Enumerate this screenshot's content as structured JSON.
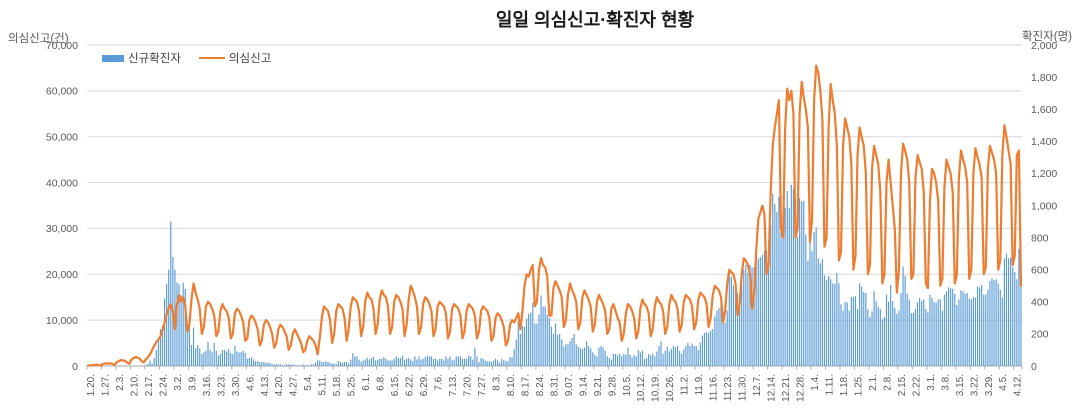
{
  "title": "일일 의심신고·확진자 현황",
  "left_axis": {
    "title": "의심신고(건)",
    "ticks": [
      "70,000",
      "60,000",
      "50,000",
      "40,000",
      "30,000",
      "20,000",
      "10,000",
      "0"
    ],
    "max": 70000
  },
  "right_axis": {
    "title": "확진자(명)",
    "ticks": [
      "2,000",
      "1,800",
      "1,600",
      "1,400",
      "1,200",
      "1,000",
      "800",
      "600",
      "400",
      "200",
      "0"
    ],
    "max": 2000
  },
  "legend": [
    {
      "label": "신규확진자",
      "color": "#5B9BD5",
      "type": "bar"
    },
    {
      "label": "의심신고",
      "color": "#ED7D31",
      "type": "line"
    }
  ],
  "colors": {
    "bar": "#5B9BD5",
    "line": "#ED7D31",
    "gridline": "#D9D9D9",
    "axis_line": "#ADADAD",
    "tick_text": "#595959"
  },
  "chart_data": {
    "type": "combo",
    "title": "일일 의심신고·확진자 현황",
    "x_tick_labels": [
      "1.20.",
      "1.27.",
      "2.3.",
      "2.10.",
      "2.17.",
      "2.24.",
      "3.2.",
      "3.9.",
      "3.16.",
      "3.23.",
      "3.30.",
      "4.6.",
      "4.13.",
      "4.20.",
      "4.27.",
      "5.4.",
      "5.11.",
      "5.18.",
      "5.25.",
      "6.1.",
      "6.8.",
      "6.15.",
      "6.22.",
      "6.29.",
      "7.6.",
      "7.13.",
      "7.20.",
      "7.27.",
      "8.3.",
      "8.10.",
      "8.17.",
      "8.24.",
      "8.31.",
      "9.07.",
      "9.14.",
      "9.21.",
      "9.28.",
      "10.5.",
      "10.12.",
      "10.19.",
      "10.26.",
      "11.2.",
      "11.9.",
      "11.16.",
      "11.23.",
      "11.30.",
      "12.7.",
      "12.14.",
      "12.21.",
      "12.28.",
      "1.4.",
      "1.11.",
      "1.18.",
      "1.25.",
      "2.1.",
      "2.8.",
      "2.15.",
      "2.22.",
      "3.1.",
      "3.8.",
      "3.15.",
      "3.22.",
      "3.29.",
      "4.5.",
      "4.12."
    ],
    "days_per_tick": 7,
    "left_axis_range": [
      0,
      70000
    ],
    "right_axis_range": [
      0,
      2000
    ],
    "gridlines": true,
    "legend_position": "top-left-inside",
    "series": [
      {
        "name": "신규확진자",
        "type": "bar",
        "axis": "right",
        "color": "#5B9BD5",
        "values": [
          1,
          0,
          0,
          1,
          0,
          0,
          1,
          1,
          1,
          0,
          1,
          2,
          0,
          1,
          2,
          1,
          3,
          1,
          4,
          1,
          2,
          1,
          0,
          2,
          1,
          1,
          2,
          3,
          5,
          15,
          35,
          15,
          50,
          100,
          170,
          230,
          250,
          420,
          510,
          600,
          900,
          680,
          600,
          520,
          510,
          440,
          520,
          480,
          270,
          250,
          130,
          240,
          110,
          130,
          110,
          75,
          85,
          95,
          150,
          100,
          85,
          145,
          95,
          65,
          75,
          100,
          100,
          90,
          105,
          80,
          75,
          125,
          90,
          85,
          85,
          95,
          80,
          45,
          50,
          55,
          40,
          30,
          30,
          25,
          25,
          25,
          20,
          20,
          20,
          10,
          10,
          10,
          10,
          10,
          5,
          5,
          10,
          10,
          10,
          10,
          5,
          5,
          5,
          5,
          10,
          5,
          5,
          5,
          10,
          10,
          20,
          35,
          35,
          25,
          25,
          30,
          25,
          20,
          15,
          15,
          10,
          30,
          25,
          20,
          25,
          25,
          15,
          40,
          80,
          60,
          60,
          40,
          25,
          35,
          40,
          50,
          40,
          50,
          55,
          35,
          40,
          45,
          45,
          55,
          45,
          35,
          35,
          35,
          45,
          60,
          50,
          50,
          65,
          40,
          45,
          50,
          40,
          30,
          60,
          40,
          60,
          40,
          45,
          55,
          65,
          60,
          60,
          45,
          45,
          35,
          45,
          45,
          35,
          60,
          45,
          60,
          35,
          40,
          60,
          60,
          60,
          45,
          45,
          45,
          65,
          60,
          40,
          115,
          60,
          25,
          50,
          45,
          35,
          30,
          30,
          25,
          35,
          45,
          35,
          20,
          45,
          35,
          30,
          30,
          55,
          55,
          105,
          165,
          280,
          200,
          250,
          245,
          295,
          325,
          330,
          395,
          265,
          265,
          320,
          440,
          370,
          370,
          320,
          300,
          245,
          200,
          265,
          195,
          200,
          165,
          120,
          135,
          135,
          155,
          175,
          200,
          135,
          120,
          110,
          105,
          115,
          155,
          125,
          110,
          85,
          70,
          60,
          115,
          125,
          115,
          95,
          60,
          50,
          40,
          75,
          75,
          65,
          75,
          60,
          75,
          70,
          115,
          70,
          55,
          70,
          60,
          100,
          85,
          95,
          45,
          50,
          75,
          65,
          75,
          60,
          90,
          125,
          155,
          75,
          95,
          120,
          90,
          105,
          125,
          115,
          125,
          95,
          75,
          105,
          125,
          145,
          125,
          140,
          125,
          125,
          100,
          145,
          190,
          205,
          210,
          205,
          220,
          230,
          310,
          345,
          360,
          385,
          330,
          270,
          345,
          580,
          555,
          500,
          485,
          450,
          435,
          510,
          600,
          630,
          580,
          630,
          615,
          615,
          685,
          670,
          680,
          690,
          720,
          715,
          715,
          880,
          1075,
          1010,
          960,
          1055,
          925,
          925,
          985,
          1090,
          985,
          1130,
          1105,
          965,
          805,
          1045,
          1025,
          1030,
          820,
          655,
          815,
          715,
          835,
          865,
          670,
          640,
          665,
          565,
          535,
          560,
          540,
          515,
          510,
          580,
          515,
          385,
          345,
          400,
          395,
          345,
          430,
          430,
          435,
          355,
          515,
          495,
          460,
          455,
          355,
          305,
          340,
          465,
          405,
          370,
          355,
          290,
          305,
          445,
          400,
          505,
          405,
          360,
          325,
          345,
          455,
          620,
          560,
          450,
          415,
          330,
          330,
          355,
          395,
          425,
          405,
          415,
          355,
          335,
          445,
          425,
          400,
          395,
          415,
          415,
          345,
          445,
          465,
          490,
          485,
          480,
          450,
          380,
          415,
          470,
          465,
          450,
          455,
          420,
          415,
          430,
          425,
          495,
          490,
          505,
          445,
          445,
          475,
          530,
          545,
          535,
          540,
          515,
          475,
          425,
          670,
          700,
          670,
          675,
          615,
          585,
          540,
          730,
          695
        ]
      },
      {
        "name": "의심신고",
        "type": "line",
        "axis": "left",
        "color": "#ED7D31",
        "values": [
          100,
          100,
          200,
          200,
          300,
          200,
          100,
          400,
          500,
          600,
          500,
          600,
          400,
          300,
          900,
          1100,
          1300,
          1200,
          1100,
          700,
          500,
          1400,
          1700,
          2000,
          1800,
          1600,
          1000,
          800,
          1500,
          1900,
          2600,
          3500,
          4400,
          5200,
          5800,
          6500,
          7800,
          9500,
          11200,
          12600,
          13500,
          12000,
          8000,
          13500,
          15500,
          14000,
          15000,
          13000,
          7500,
          9000,
          14500,
          18000,
          16000,
          14500,
          12500,
          7000,
          8500,
          13000,
          14000,
          13500,
          12500,
          11000,
          6500,
          7500,
          12000,
          13500,
          12500,
          12000,
          10500,
          6000,
          7000,
          11500,
          12500,
          12000,
          11000,
          9500,
          5500,
          6000,
          10000,
          11000,
          10500,
          9500,
          8000,
          4500,
          5500,
          9000,
          10000,
          9500,
          8500,
          7000,
          4000,
          5000,
          8000,
          9000,
          8500,
          7500,
          6500,
          3500,
          4500,
          7000,
          8000,
          7000,
          6000,
          5000,
          3000,
          3500,
          5500,
          6500,
          6000,
          5500,
          4500,
          2500,
          6000,
          10500,
          13000,
          12500,
          12000,
          10000,
          5000,
          7000,
          12000,
          13500,
          13000,
          12500,
          10500,
          5500,
          8000,
          13000,
          15000,
          14500,
          14000,
          12000,
          6500,
          8500,
          14000,
          16000,
          15000,
          14500,
          12500,
          7000,
          9000,
          14500,
          16500,
          15500,
          15000,
          13000,
          7000,
          8500,
          14000,
          15500,
          15000,
          14000,
          12500,
          6500,
          9000,
          14500,
          17500,
          16500,
          15000,
          13000,
          7000,
          8500,
          13500,
          15000,
          14500,
          13500,
          12000,
          6500,
          8000,
          13000,
          14000,
          13500,
          13000,
          11500,
          6000,
          7500,
          12500,
          13500,
          13000,
          12500,
          11000,
          6000,
          7500,
          12000,
          13500,
          13000,
          12500,
          11000,
          6000,
          7500,
          12000,
          13000,
          12500,
          12000,
          10500,
          5500,
          6500,
          10500,
          11500,
          11000,
          10000,
          8500,
          4500,
          5500,
          9000,
          10000,
          9500,
          10500,
          11500,
          8000,
          12000,
          17500,
          20000,
          19500,
          21000,
          22000,
          13000,
          14000,
          21000,
          23500,
          22000,
          21500,
          19500,
          11000,
          11000,
          17000,
          18500,
          17500,
          16500,
          15000,
          8500,
          10000,
          15500,
          18000,
          16500,
          15500,
          14000,
          8000,
          9500,
          15000,
          16500,
          15500,
          14500,
          13000,
          7500,
          9000,
          14000,
          15500,
          14500,
          13500,
          12000,
          7000,
          8000,
          12500,
          13500,
          12000,
          10500,
          9500,
          5500,
          7000,
          11500,
          13500,
          13000,
          12000,
          10500,
          6000,
          7500,
          12500,
          14500,
          13500,
          13000,
          11500,
          6500,
          8000,
          13000,
          15000,
          14000,
          13500,
          12000,
          7000,
          8500,
          13500,
          15500,
          14500,
          14000,
          12500,
          7500,
          9000,
          14000,
          15500,
          15000,
          14500,
          13000,
          8000,
          9500,
          14500,
          16000,
          15500,
          15000,
          13500,
          8500,
          10500,
          15500,
          17500,
          17000,
          16500,
          15000,
          9500,
          12000,
          18000,
          21000,
          20500,
          20000,
          18000,
          11000,
          13500,
          20000,
          23500,
          23000,
          22000,
          20000,
          12500,
          16000,
          25000,
          32000,
          33500,
          35000,
          33000,
          20000,
          22000,
          38000,
          48000,
          52000,
          55000,
          58000,
          30000,
          28000,
          52000,
          60500,
          58000,
          60000,
          55000,
          28000,
          30000,
          55000,
          62000,
          58500,
          56000,
          52000,
          27000,
          32000,
          58000,
          65500,
          64000,
          60000,
          54000,
          26000,
          28000,
          52000,
          61500,
          58000,
          55000,
          48000,
          23000,
          25000,
          48000,
          54000,
          52000,
          50000,
          44000,
          21000,
          24000,
          46000,
          52000,
          50000,
          48000,
          42000,
          20000,
          22000,
          43000,
          48000,
          46000,
          44000,
          38000,
          18000,
          20000,
          40000,
          45000,
          40000,
          35000,
          30000,
          16000,
          21000,
          42000,
          48500,
          47000,
          45000,
          40000,
          19000,
          20000,
          41000,
          46000,
          44500,
          43000,
          38000,
          18000,
          17000,
          36000,
          43000,
          42000,
          40000,
          36000,
          17500,
          19000,
          39000,
          45000,
          43500,
          42000,
          38000,
          18000,
          20000,
          41000,
          47000,
          45000,
          43500,
          40000,
          19000,
          21000,
          42000,
          47500,
          45500,
          44000,
          41000,
          20000,
          21500,
          43000,
          48000,
          46500,
          45000,
          42000,
          21000,
          23000,
          46000,
          52500,
          50000,
          47000,
          44000,
          22000,
          24000,
          46000,
          47000,
          17500
        ]
      }
    ]
  }
}
